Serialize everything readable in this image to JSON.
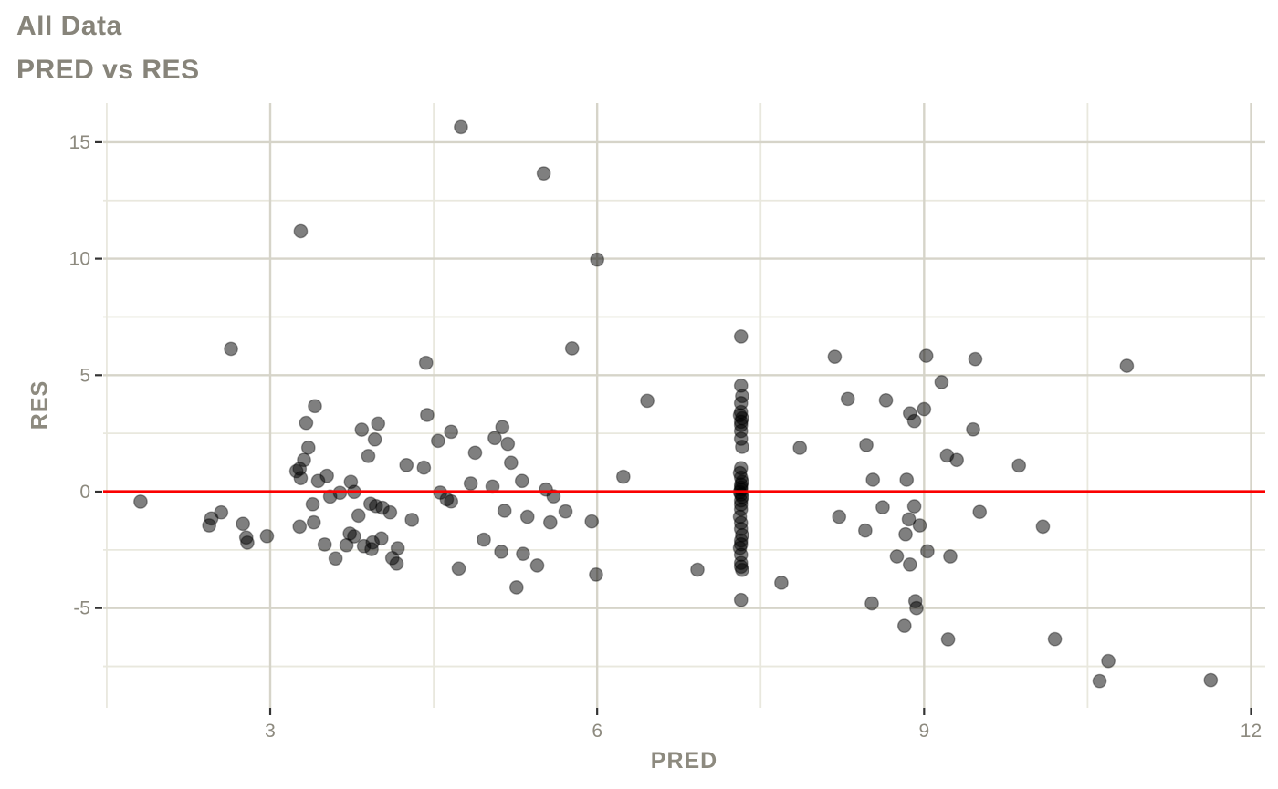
{
  "header": {
    "title": "All Data",
    "subtitle": "PRED vs RES"
  },
  "chart_data": {
    "type": "scatter",
    "title": "All Data",
    "subtitle": "PRED vs RES",
    "xlabel": "PRED",
    "ylabel": "RES",
    "xlim": [
      1.467,
      12.13
    ],
    "ylim": [
      -9.28,
      16.68
    ],
    "x_ticks": [
      3,
      6,
      9,
      12
    ],
    "y_ticks": [
      -5,
      0,
      5,
      10,
      15
    ],
    "x_minor": [
      1.5,
      4.5,
      7.5,
      10.5
    ],
    "y_minor": [
      -7.5,
      -2.5,
      2.5,
      7.5,
      12.5
    ],
    "grid": true,
    "legend": "none",
    "hline_y": 0,
    "colors": {
      "hline": "#fb0000",
      "point": "#000000",
      "grid_major": "#d6d4c9",
      "grid_minor": "#e9e8de",
      "tick": "#333333",
      "label": "#8d8a7f",
      "title": "#87847a",
      "background": "#ffffff"
    },
    "point_style": {
      "radius": 7.2,
      "fill_opacity": 0.5,
      "stroke_opacity": 0.35,
      "stroke_width": 1.4
    },
    "points": [
      [
        1.81,
        -0.43
      ],
      [
        2.44,
        -1.45
      ],
      [
        2.46,
        -1.15
      ],
      [
        2.55,
        -0.89
      ],
      [
        2.64,
        6.13
      ],
      [
        2.75,
        -1.38
      ],
      [
        2.78,
        -1.97
      ],
      [
        2.79,
        -2.19
      ],
      [
        2.97,
        -1.91
      ],
      [
        3.28,
        11.18
      ],
      [
        3.41,
        3.67
      ],
      [
        3.33,
        2.95
      ],
      [
        3.84,
        2.66
      ],
      [
        3.99,
        2.92
      ],
      [
        3.96,
        2.24
      ],
      [
        3.35,
        1.89
      ],
      [
        3.31,
        1.36
      ],
      [
        3.9,
        1.53
      ],
      [
        3.27,
        0.98
      ],
      [
        3.24,
        0.88
      ],
      [
        3.28,
        0.58
      ],
      [
        3.44,
        0.46
      ],
      [
        3.52,
        0.68
      ],
      [
        3.74,
        0.42
      ],
      [
        3.55,
        -0.21
      ],
      [
        3.64,
        -0.05
      ],
      [
        3.77,
        -0.01
      ],
      [
        3.39,
        -0.54
      ],
      [
        3.92,
        -0.52
      ],
      [
        3.97,
        -0.62
      ],
      [
        4.03,
        -0.69
      ],
      [
        4.1,
        -0.89
      ],
      [
        3.81,
        -1.03
      ],
      [
        3.4,
        -1.32
      ],
      [
        3.27,
        -1.5
      ],
      [
        3.5,
        -2.27
      ],
      [
        3.73,
        -1.8
      ],
      [
        3.77,
        -1.92
      ],
      [
        3.7,
        -2.3
      ],
      [
        3.86,
        -2.34
      ],
      [
        3.94,
        -2.18
      ],
      [
        3.93,
        -2.47
      ],
      [
        4.02,
        -2.01
      ],
      [
        3.6,
        -2.87
      ],
      [
        4.17,
        -2.43
      ],
      [
        4.12,
        -2.85
      ],
      [
        4.16,
        -3.09
      ],
      [
        4.44,
        3.29
      ],
      [
        4.66,
        2.57
      ],
      [
        4.54,
        2.18
      ],
      [
        4.88,
        1.67
      ],
      [
        4.25,
        1.14
      ],
      [
        4.41,
        1.03
      ],
      [
        4.84,
        0.35
      ],
      [
        4.56,
        -0.04
      ],
      [
        4.62,
        -0.33
      ],
      [
        4.66,
        -0.42
      ],
      [
        4.3,
        -1.21
      ],
      [
        4.73,
        -3.3
      ],
      [
        4.43,
        5.53
      ],
      [
        4.75,
        15.65
      ],
      [
        5.13,
        2.77
      ],
      [
        5.06,
        2.3
      ],
      [
        5.18,
        2.05
      ],
      [
        5.21,
        1.24
      ],
      [
        5.31,
        0.46
      ],
      [
        5.04,
        0.22
      ],
      [
        5.53,
        0.09
      ],
      [
        5.6,
        -0.2
      ],
      [
        5.15,
        -0.82
      ],
      [
        5.36,
        -1.08
      ],
      [
        5.57,
        -1.32
      ],
      [
        5.71,
        -0.85
      ],
      [
        5.95,
        -1.28
      ],
      [
        4.96,
        -2.06
      ],
      [
        5.12,
        -2.58
      ],
      [
        5.32,
        -2.67
      ],
      [
        5.45,
        -3.17
      ],
      [
        5.26,
        -4.11
      ],
      [
        5.99,
        -3.56
      ],
      [
        5.77,
        6.15
      ],
      [
        6.46,
        3.9
      ],
      [
        6.0,
        9.96
      ],
      [
        6.24,
        0.64
      ],
      [
        5.51,
        13.66
      ],
      [
        6.92,
        -3.35
      ],
      [
        7.32,
        6.66
      ],
      [
        7.32,
        4.55
      ],
      [
        7.33,
        4.1
      ],
      [
        7.32,
        3.8
      ],
      [
        7.32,
        3.42
      ],
      [
        7.31,
        3.28
      ],
      [
        7.33,
        3.15
      ],
      [
        7.32,
        3.0
      ],
      [
        7.32,
        2.86
      ],
      [
        7.32,
        2.6
      ],
      [
        7.32,
        2.27
      ],
      [
        7.33,
        1.92
      ],
      [
        7.32,
        1.01
      ],
      [
        7.31,
        0.8
      ],
      [
        7.32,
        0.6
      ],
      [
        7.33,
        0.42
      ],
      [
        7.32,
        0.3
      ],
      [
        7.32,
        0.18
      ],
      [
        7.32,
        0.08
      ],
      [
        7.31,
        -0.02
      ],
      [
        7.32,
        -0.12
      ],
      [
        7.33,
        -0.22
      ],
      [
        7.32,
        -0.38
      ],
      [
        7.32,
        -0.55
      ],
      [
        7.32,
        -0.76
      ],
      [
        7.31,
        -1.08
      ],
      [
        7.32,
        -1.34
      ],
      [
        7.32,
        -1.6
      ],
      [
        7.33,
        -1.87
      ],
      [
        7.32,
        -2.1
      ],
      [
        7.32,
        -2.26
      ],
      [
        7.31,
        -2.42
      ],
      [
        7.32,
        -2.71
      ],
      [
        7.32,
        -3.06
      ],
      [
        7.32,
        -3.22
      ],
      [
        7.33,
        -3.36
      ],
      [
        7.32,
        -4.65
      ],
      [
        7.69,
        -3.91
      ],
      [
        7.86,
        1.88
      ],
      [
        8.18,
        5.79
      ],
      [
        8.3,
        3.98
      ],
      [
        8.47,
        2.0
      ],
      [
        8.53,
        0.51
      ],
      [
        8.84,
        0.51
      ],
      [
        8.62,
        -0.67
      ],
      [
        8.91,
        -0.63
      ],
      [
        8.65,
        3.92
      ],
      [
        8.87,
        3.36
      ],
      [
        9.0,
        3.54
      ],
      [
        8.91,
        3.03
      ],
      [
        9.45,
        2.67
      ],
      [
        9.21,
        1.55
      ],
      [
        9.3,
        1.36
      ],
      [
        9.87,
        1.12
      ],
      [
        9.51,
        -0.87
      ],
      [
        10.09,
        -1.5
      ],
      [
        8.22,
        -1.08
      ],
      [
        8.86,
        -1.19
      ],
      [
        8.96,
        -1.45
      ],
      [
        8.46,
        -1.67
      ],
      [
        8.83,
        -1.83
      ],
      [
        9.03,
        -2.56
      ],
      [
        9.24,
        -2.78
      ],
      [
        8.75,
        -2.78
      ],
      [
        8.87,
        -3.13
      ],
      [
        8.52,
        -4.8
      ],
      [
        8.92,
        -4.7
      ],
      [
        8.93,
        -5.0
      ],
      [
        8.82,
        -5.76
      ],
      [
        9.22,
        -6.34
      ],
      [
        10.2,
        -6.33
      ],
      [
        9.02,
        5.83
      ],
      [
        9.47,
        5.69
      ],
      [
        9.16,
        4.7
      ],
      [
        10.86,
        5.4
      ],
      [
        10.69,
        -7.27
      ],
      [
        10.61,
        -8.13
      ],
      [
        11.63,
        -8.09
      ]
    ]
  }
}
